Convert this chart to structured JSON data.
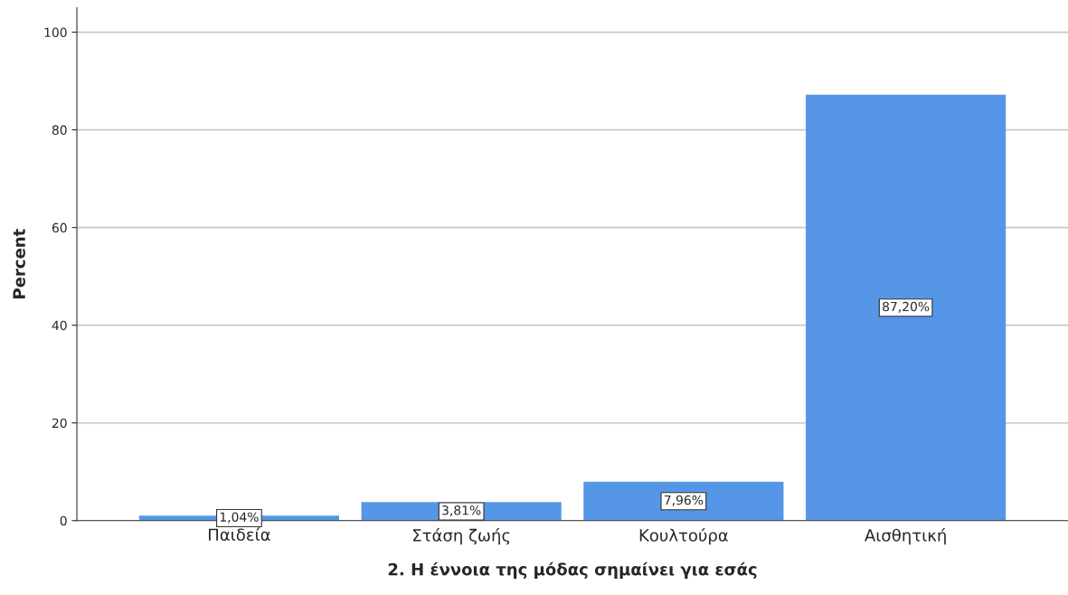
{
  "chart_data": {
    "type": "bar",
    "xlabel": "2. Η έννοια της μόδας σημαίνει για εσάς",
    "ylabel": "Percent",
    "categories": [
      "Παιδεία",
      "Στάση ζωής",
      "Κουλτούρα",
      "Αισθητική"
    ],
    "values": [
      1.04,
      3.81,
      7.96,
      87.2
    ],
    "value_labels": [
      "1,04%",
      "3,81%",
      "7,96%",
      "87,20%"
    ],
    "color": "#5596e6",
    "ylim": [
      0,
      105
    ],
    "yticks": [
      0,
      20,
      40,
      60,
      80,
      100
    ],
    "grid": "y",
    "legend": false
  }
}
